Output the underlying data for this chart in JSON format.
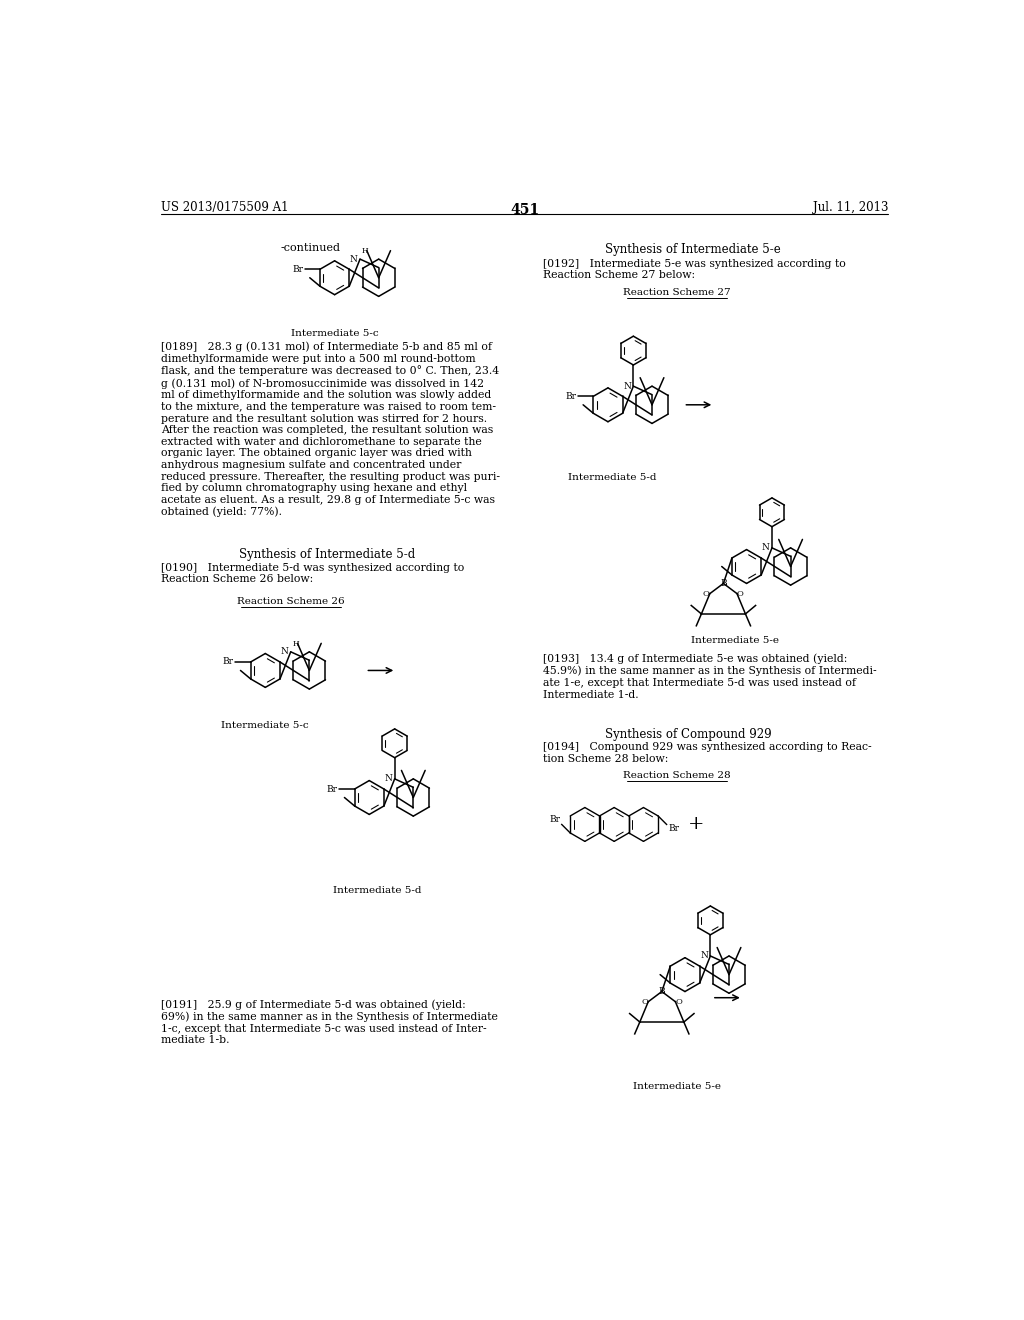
{
  "background_color": "#ffffff",
  "header_left": "US 2013/0175509 A1",
  "header_right": "Jul. 11, 2013",
  "page_number": "451",
  "body_fontsize": 7.8,
  "title_fontsize": 8.5,
  "label_fontsize": 7.2,
  "scheme_label_fontsize": 7.5
}
